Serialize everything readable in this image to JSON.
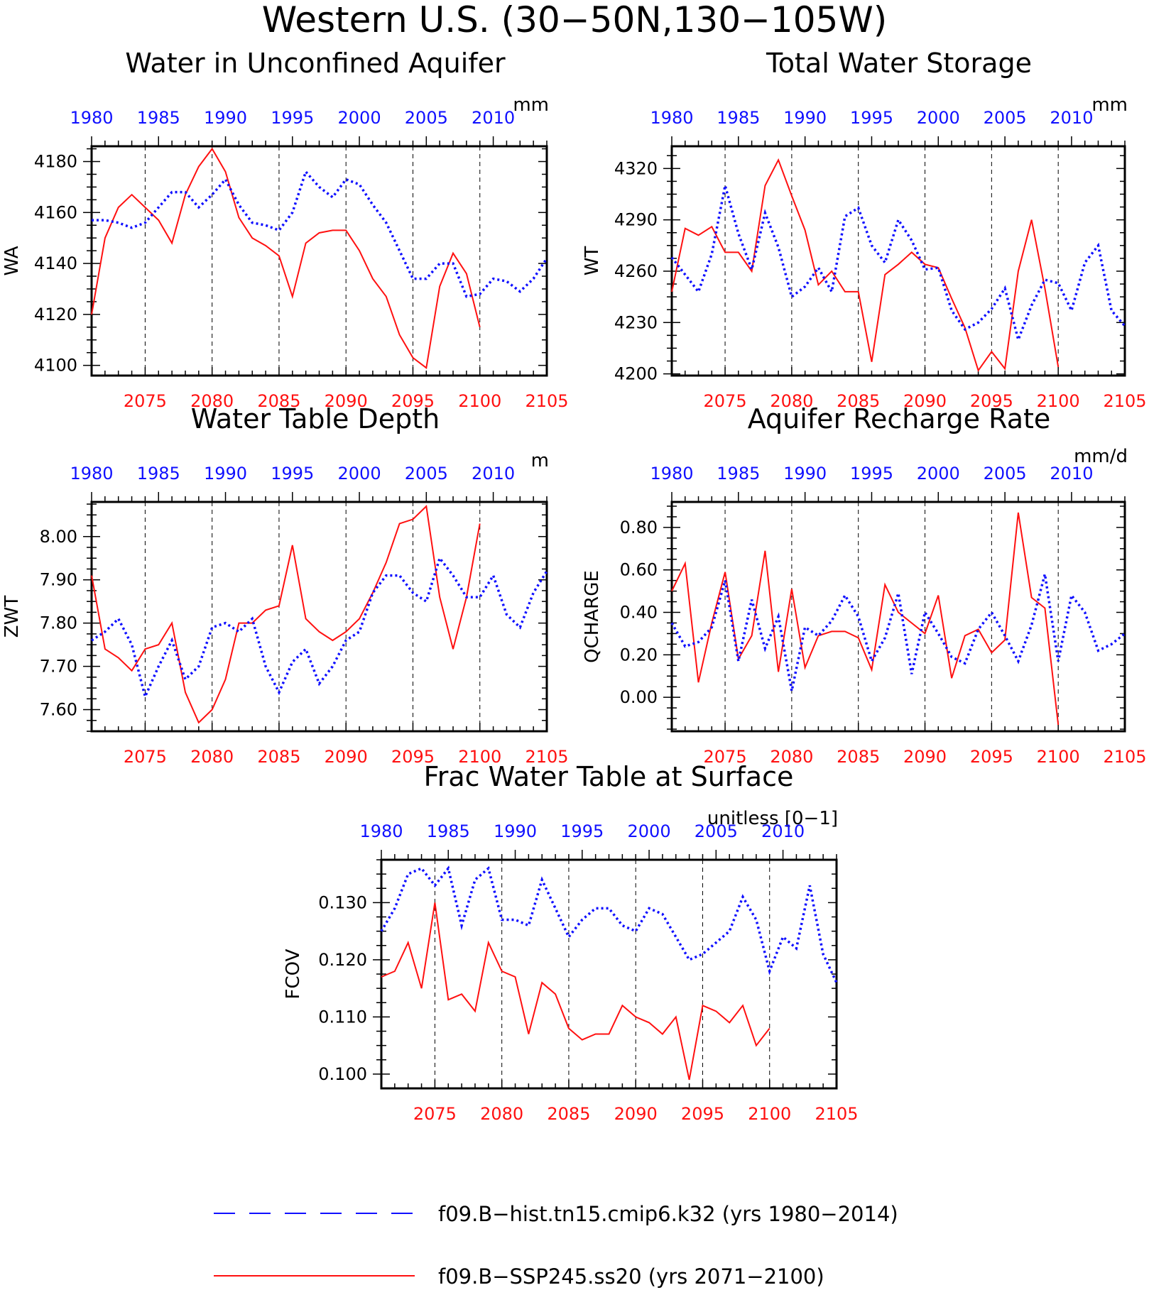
{
  "figure": {
    "title": "Western U.S. (30−50N,130−105W)",
    "colors": {
      "hist": "#1010ff",
      "ssp": "#ff1010",
      "axis": "#000000"
    }
  },
  "legend": {
    "items": [
      {
        "label": "f09.B−hist.tn15.cmip6.k32 (yrs 1980−2014)",
        "color": "#1010ff",
        "style": "dashed"
      },
      {
        "label": "f09.B−SSP245.ss20 (yrs 2071−2100)",
        "color": "#ff1010",
        "style": "solid"
      }
    ]
  },
  "chart_data": [
    {
      "type": "line",
      "title": "Water in Unconfined Aquifer",
      "ylabel": "WA",
      "units": "mm",
      "ylim": [
        4096,
        4186
      ],
      "yticks": [
        4100,
        4120,
        4140,
        4160,
        4180
      ],
      "ytick_labels": [
        "4100",
        "4120",
        "4140",
        "4160",
        "4180"
      ],
      "top_axis": {
        "label_years": [
          1980,
          1985,
          1990,
          1995,
          2000,
          2005,
          2010
        ],
        "range": [
          1980,
          2014
        ]
      },
      "bottom_axis": {
        "label_years": [
          2075,
          2080,
          2085,
          2090,
          2095,
          2100,
          2105
        ],
        "range": [
          2071,
          2105
        ]
      },
      "series": [
        {
          "values": [
            4157,
            4157,
            4156,
            4154,
            4156,
            4162,
            4168,
            4168,
            4162,
            4167,
            4173,
            4163,
            4156,
            4155,
            4153,
            4160,
            4176,
            4170,
            4166,
            4173,
            4171,
            4163,
            4156,
            4145,
            4134,
            4134,
            4140,
            4140,
            4127,
            4128,
            4134,
            4133,
            4129,
            4134,
            4142
          ]
        },
        {
          "values": [
            4120,
            4150,
            4162,
            4167,
            4162,
            4157,
            4148,
            4167,
            4178,
            4185,
            4176,
            4158,
            4150,
            4147,
            4143,
            4127,
            4148,
            4152,
            4153,
            4153,
            4145,
            4134,
            4127,
            4112,
            4103,
            4099,
            4131,
            4144,
            4136,
            4115
          ]
        }
      ]
    },
    {
      "type": "line",
      "title": "Total Water Storage",
      "ylabel": "WT",
      "units": "mm",
      "ylim": [
        4199,
        4333
      ],
      "yticks": [
        4200,
        4230,
        4260,
        4290,
        4320
      ],
      "ytick_labels": [
        "4200",
        "4230",
        "4260",
        "4290",
        "4320"
      ],
      "top_axis": {
        "label_years": [
          1980,
          1985,
          1990,
          1995,
          2000,
          2005,
          2010
        ],
        "range": [
          1980,
          2014
        ]
      },
      "bottom_axis": {
        "label_years": [
          2075,
          2080,
          2085,
          2090,
          2095,
          2100,
          2105
        ],
        "range": [
          2071,
          2105
        ]
      },
      "series": [
        {
          "values": [
            4268,
            4258,
            4248,
            4270,
            4310,
            4282,
            4261,
            4294,
            4274,
            4245,
            4251,
            4262,
            4248,
            4292,
            4297,
            4275,
            4265,
            4290,
            4278,
            4261,
            4262,
            4237,
            4226,
            4230,
            4238,
            4250,
            4220,
            4240,
            4255,
            4253,
            4237,
            4265,
            4275,
            4237,
            4228
          ]
        },
        {
          "values": [
            4248,
            4285,
            4281,
            4286,
            4271,
            4271,
            4260,
            4310,
            4325,
            4304,
            4284,
            4252,
            4260,
            4248,
            4248,
            4207,
            4258,
            4264,
            4271,
            4264,
            4262,
            4244,
            4227,
            4202,
            4213,
            4203,
            4260,
            4290,
            4250,
            4204
          ]
        }
      ]
    },
    {
      "type": "line",
      "title": "Water Table Depth",
      "ylabel": "ZWT",
      "units": "m",
      "ylim": [
        7.55,
        8.08
      ],
      "yticks": [
        7.6,
        7.7,
        7.8,
        7.9,
        8.0
      ],
      "ytick_labels": [
        "7.60",
        "7.70",
        "7.80",
        "7.90",
        "8.00"
      ],
      "top_axis": {
        "label_years": [
          1980,
          1985,
          1990,
          1995,
          2000,
          2005,
          2010
        ],
        "range": [
          1980,
          2014
        ]
      },
      "bottom_axis": {
        "label_years": [
          2075,
          2080,
          2085,
          2090,
          2095,
          2100,
          2105
        ],
        "range": [
          2071,
          2105
        ]
      },
      "series": [
        {
          "values": [
            7.76,
            7.78,
            7.81,
            7.75,
            7.63,
            7.7,
            7.76,
            7.67,
            7.7,
            7.79,
            7.8,
            7.78,
            7.81,
            7.7,
            7.64,
            7.71,
            7.74,
            7.66,
            7.7,
            7.76,
            7.78,
            7.87,
            7.91,
            7.91,
            7.87,
            7.85,
            7.95,
            7.91,
            7.86,
            7.86,
            7.91,
            7.82,
            7.79,
            7.87,
            7.92
          ]
        },
        {
          "values": [
            7.91,
            7.74,
            7.72,
            7.69,
            7.74,
            7.75,
            7.8,
            7.64,
            7.57,
            7.6,
            7.67,
            7.8,
            7.8,
            7.83,
            7.84,
            7.98,
            7.81,
            7.78,
            7.76,
            7.78,
            7.81,
            7.87,
            7.94,
            8.03,
            8.04,
            8.07,
            7.86,
            7.74,
            7.86,
            8.03
          ]
        }
      ]
    },
    {
      "type": "line",
      "title": "Aquifer Recharge Rate",
      "ylabel": "QCHARGE",
      "units": "mm/d",
      "ylim": [
        -0.16,
        0.92
      ],
      "yticks": [
        0.0,
        0.2,
        0.4,
        0.6,
        0.8
      ],
      "ytick_labels": [
        "0.00",
        "0.20",
        "0.40",
        "0.60",
        "0.80"
      ],
      "top_axis": {
        "label_years": [
          1980,
          1985,
          1990,
          1995,
          2000,
          2005,
          2010
        ],
        "range": [
          1980,
          2014
        ]
      },
      "bottom_axis": {
        "label_years": [
          2075,
          2080,
          2085,
          2090,
          2095,
          2100,
          2105
        ],
        "range": [
          2071,
          2105
        ]
      },
      "series": [
        {
          "values": [
            0.35,
            0.24,
            0.26,
            0.33,
            0.55,
            0.17,
            0.46,
            0.23,
            0.38,
            0.03,
            0.33,
            0.29,
            0.36,
            0.48,
            0.38,
            0.17,
            0.28,
            0.49,
            0.11,
            0.4,
            0.3,
            0.19,
            0.16,
            0.32,
            0.4,
            0.29,
            0.17,
            0.34,
            0.58,
            0.17,
            0.48,
            0.4,
            0.22,
            0.25,
            0.3
          ]
        },
        {
          "values": [
            0.5,
            0.63,
            0.07,
            0.35,
            0.59,
            0.18,
            0.29,
            0.69,
            0.12,
            0.51,
            0.14,
            0.29,
            0.31,
            0.31,
            0.28,
            0.13,
            0.53,
            0.4,
            0.35,
            0.3,
            0.48,
            0.09,
            0.29,
            0.32,
            0.21,
            0.27,
            0.87,
            0.47,
            0.42,
            -0.13
          ]
        }
      ]
    },
    {
      "type": "line",
      "title": "Frac Water Table at Surface",
      "ylabel": "FCOV",
      "units": "unitless [0−1]",
      "ylim": [
        0.0975,
        0.1375
      ],
      "yticks": [
        0.1,
        0.11,
        0.12,
        0.13
      ],
      "ytick_labels": [
        "0.100",
        "0.110",
        "0.120",
        "0.130"
      ],
      "top_axis": {
        "label_years": [
          1980,
          1985,
          1990,
          1995,
          2000,
          2005,
          2010
        ],
        "range": [
          1980,
          2014
        ]
      },
      "bottom_axis": {
        "label_years": [
          2075,
          2080,
          2085,
          2090,
          2095,
          2100,
          2105
        ],
        "range": [
          2071,
          2105
        ]
      },
      "series": [
        {
          "values": [
            0.125,
            0.129,
            0.135,
            0.136,
            0.133,
            0.136,
            0.126,
            0.134,
            0.136,
            0.127,
            0.127,
            0.126,
            0.134,
            0.129,
            0.124,
            0.127,
            0.129,
            0.129,
            0.126,
            0.125,
            0.129,
            0.128,
            0.124,
            0.12,
            0.121,
            0.123,
            0.125,
            0.131,
            0.127,
            0.118,
            0.124,
            0.122,
            0.133,
            0.121,
            0.116
          ]
        },
        {
          "values": [
            0.117,
            0.118,
            0.123,
            0.115,
            0.13,
            0.113,
            0.114,
            0.111,
            0.123,
            0.118,
            0.117,
            0.107,
            0.116,
            0.114,
            0.108,
            0.106,
            0.107,
            0.107,
            0.112,
            0.11,
            0.109,
            0.107,
            0.11,
            0.099,
            0.112,
            0.111,
            0.109,
            0.112,
            0.105,
            0.108
          ]
        }
      ]
    }
  ]
}
